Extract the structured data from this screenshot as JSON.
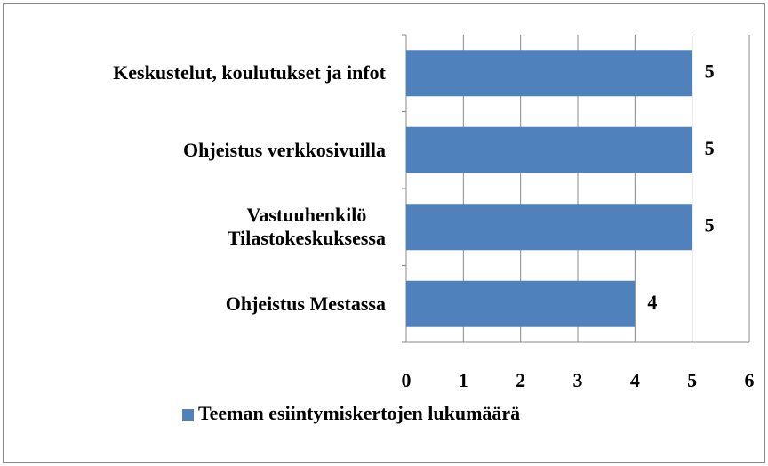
{
  "chart_data": {
    "type": "barh",
    "categories": [
      "Keskustelut, koulutukset ja infot",
      "Ohjeistus verkkosivuilla",
      "Vastuuhenkilö\nTilastokeskuksessa",
      "Ohjeistus Mestassa"
    ],
    "series": [
      {
        "name": "Teeman esiintymiskertojen lukumäärä",
        "color": "#4f81bd",
        "values": [
          5,
          5,
          5,
          4
        ]
      }
    ],
    "xlim": [
      0,
      6
    ],
    "xticks": [
      0,
      1,
      2,
      3,
      4,
      5,
      6
    ],
    "grid": true,
    "legend": "bottom"
  }
}
